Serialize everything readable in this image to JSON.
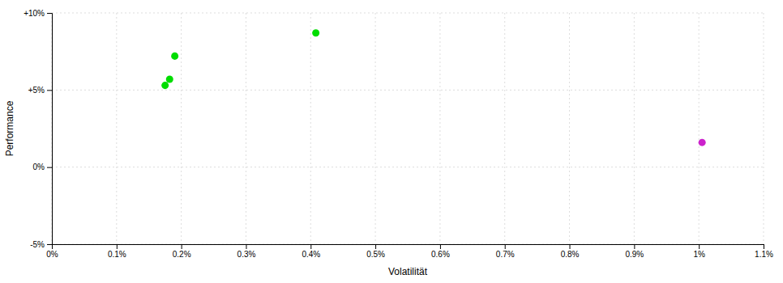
{
  "chart_data": {
    "type": "scatter",
    "xlabel": "Volatilität",
    "ylabel": "Performance",
    "xlim": [
      0.0,
      0.011
    ],
    "ylim": [
      -0.05,
      0.1
    ],
    "xticks": [
      {
        "value": 0.0,
        "label": "0%"
      },
      {
        "value": 0.001,
        "label": "0.1%"
      },
      {
        "value": 0.002,
        "label": "0.2%"
      },
      {
        "value": 0.003,
        "label": "0.3%"
      },
      {
        "value": 0.004,
        "label": "0.4%"
      },
      {
        "value": 0.005,
        "label": "0.5%"
      },
      {
        "value": 0.006,
        "label": "0.6%"
      },
      {
        "value": 0.007,
        "label": "0.7%"
      },
      {
        "value": 0.008,
        "label": "0.8%"
      },
      {
        "value": 0.009,
        "label": "0.9%"
      },
      {
        "value": 0.01,
        "label": "1%"
      },
      {
        "value": 0.011,
        "label": "1.1%"
      }
    ],
    "yticks": [
      {
        "value": -0.05,
        "label": "-5%"
      },
      {
        "value": 0.0,
        "label": "0%"
      },
      {
        "value": 0.05,
        "label": "+5%"
      },
      {
        "value": 0.1,
        "label": "+10%"
      }
    ],
    "grid": true,
    "series": [
      {
        "color": "#00dd00",
        "marker": "circle",
        "x": [
          0.00175,
          0.00182,
          0.0019,
          0.00408
        ],
        "values": [
          0.053,
          0.057,
          0.072,
          0.087
        ]
      },
      {
        "color": "#cc22cc",
        "marker": "circle",
        "x": [
          0.01005
        ],
        "values": [
          0.016
        ]
      }
    ]
  }
}
